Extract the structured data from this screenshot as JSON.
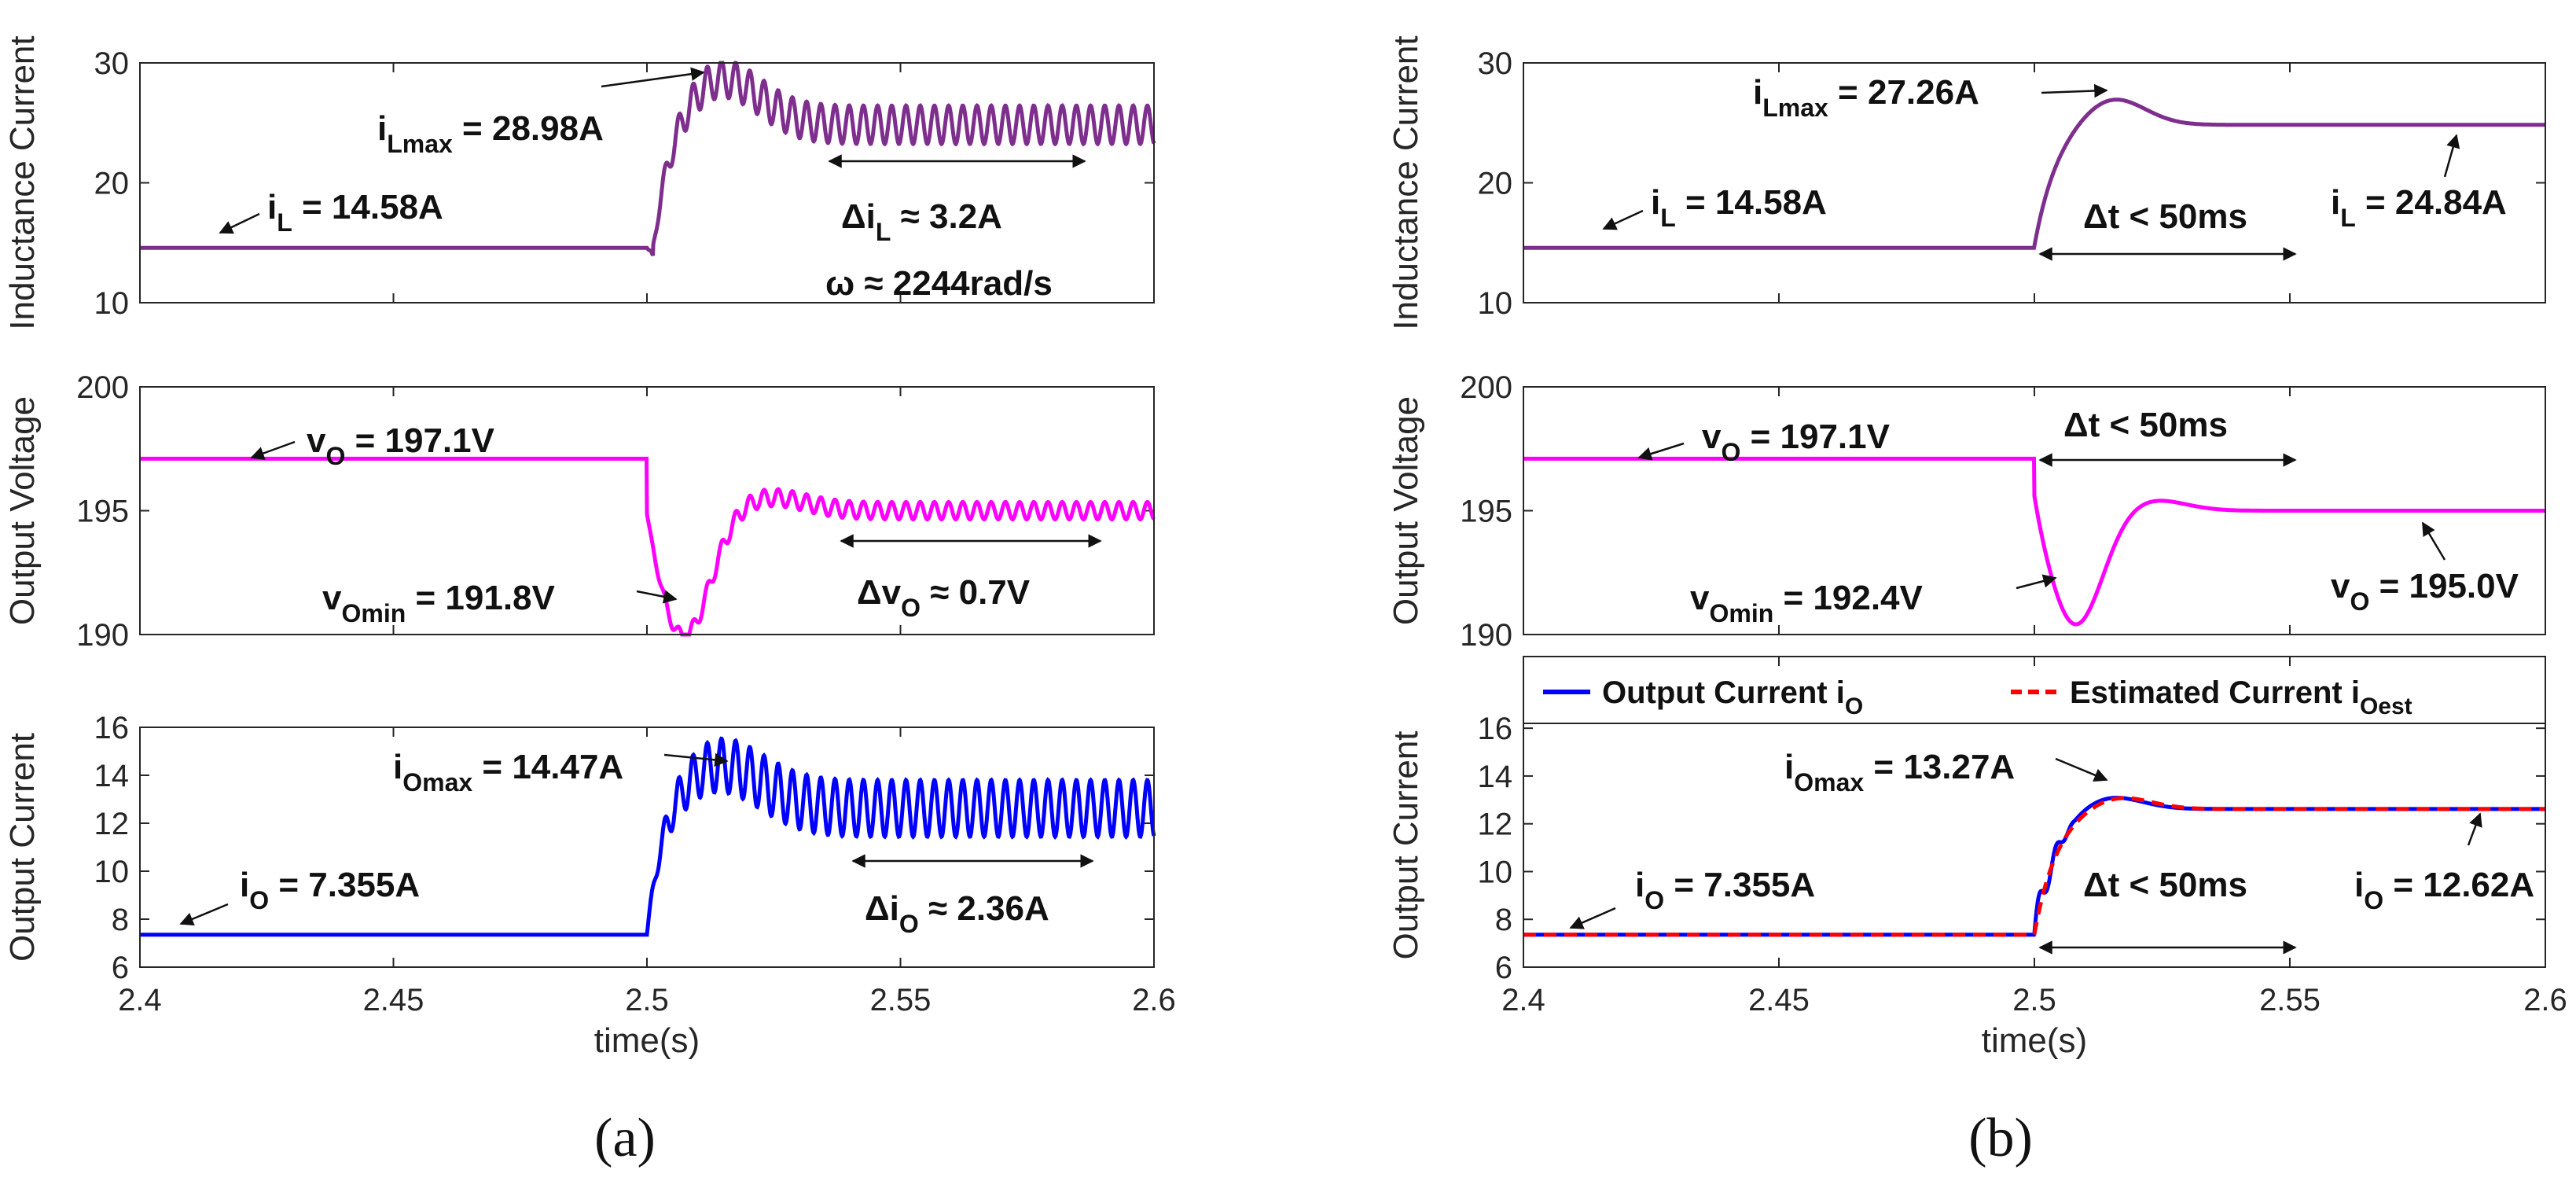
{
  "figure": {
    "panel_labels": [
      "(a)",
      "(b)"
    ]
  },
  "chart_data": [
    {
      "id": "a1",
      "type": "line",
      "panel": "a",
      "ylabel": "Inductance Current",
      "xlabel": "",
      "xlim": [
        2.4,
        2.6
      ],
      "ylim": [
        10,
        30
      ],
      "xticks": [
        2.4,
        2.45,
        2.5,
        2.55,
        2.6
      ],
      "yticks": [
        10,
        20,
        30
      ],
      "x_tick_labels": [],
      "y_tick_labels": [
        "10",
        "20",
        "30"
      ],
      "series": [
        {
          "name": "iL",
          "color": "#7e2f8e",
          "pre": 14.58,
          "step_at": 2.5,
          "dip": 13.7,
          "peak": 28.98,
          "peak_t": 2.514,
          "settle": 24.84,
          "osc_amp": 1.6,
          "osc_rad_s": 2244,
          "final": 24.84
        }
      ],
      "annotations": [
        {
          "main": "i",
          "sub": "Lmax",
          "rest": " = 28.98A"
        },
        {
          "main": "i",
          "sub": "L",
          "rest": " = 14.58A"
        },
        {
          "main": "Δi",
          "sub": "L",
          "rest": " ≈ 3.2A"
        },
        {
          "main": "ω ≈ 2244rad/s",
          "sub": "",
          "rest": ""
        }
      ]
    },
    {
      "id": "a2",
      "type": "line",
      "panel": "a",
      "ylabel": "Output Voltage",
      "xlabel": "",
      "xlim": [
        2.4,
        2.6
      ],
      "ylim": [
        190,
        200
      ],
      "xticks": [
        2.4,
        2.45,
        2.5,
        2.55,
        2.6
      ],
      "yticks": [
        190,
        195,
        200
      ],
      "x_tick_labels": [],
      "y_tick_labels": [
        "190",
        "195",
        "200"
      ],
      "series": [
        {
          "name": "vO",
          "color": "#ff00ff",
          "pre": 197.1,
          "step_at": 2.5,
          "min": 191.8,
          "min_t": 2.507,
          "settle": 195.0,
          "osc_amp": 0.35,
          "osc_rad_s": 2244
        }
      ],
      "annotations": [
        {
          "main": "v",
          "sub": "O",
          "rest": " = 197.1V"
        },
        {
          "main": "v",
          "sub": "Omin",
          "rest": " = 191.8V"
        },
        {
          "main": "Δv",
          "sub": "O",
          "rest": " ≈ 0.7V"
        }
      ]
    },
    {
      "id": "a3",
      "type": "line",
      "panel": "a",
      "ylabel": "Output Current",
      "xlabel": "time(s)",
      "xlim": [
        2.4,
        2.6
      ],
      "ylim": [
        6,
        16
      ],
      "xticks": [
        2.4,
        2.45,
        2.5,
        2.55,
        2.6
      ],
      "yticks": [
        6,
        8,
        10,
        12,
        14,
        16
      ],
      "x_tick_labels": [
        "2.4",
        "2.45",
        "2.5",
        "2.55",
        "2.6"
      ],
      "y_tick_labels": [
        "6",
        "8",
        "10",
        "12",
        "14",
        "16"
      ],
      "series": [
        {
          "name": "iO",
          "color": "#0000ff",
          "pre": 7.355,
          "step_at": 2.5,
          "peak": 14.47,
          "peak_t": 2.514,
          "settle": 12.62,
          "osc_amp": 1.18,
          "osc_rad_s": 2244
        }
      ],
      "annotations": [
        {
          "main": "i",
          "sub": "Omax",
          "rest": " = 14.47A"
        },
        {
          "main": "i",
          "sub": "O",
          "rest": " = 7.355A"
        },
        {
          "main": "Δi",
          "sub": "O",
          "rest": " ≈ 2.36A"
        }
      ]
    },
    {
      "id": "b1",
      "type": "line",
      "panel": "b",
      "ylabel": "Inductance Current",
      "xlabel": "",
      "xlim": [
        2.4,
        2.6
      ],
      "ylim": [
        10,
        30
      ],
      "xticks": [
        2.4,
        2.45,
        2.5,
        2.55,
        2.6
      ],
      "yticks": [
        10,
        20,
        30
      ],
      "x_tick_labels": [],
      "y_tick_labels": [
        "10",
        "20",
        "30"
      ],
      "series": [
        {
          "name": "iL",
          "color": "#7e2f8e",
          "pre": 14.58,
          "step_at": 2.5,
          "peak": 27.26,
          "peak_t": 2.515,
          "settle": 24.84
        }
      ],
      "annotations": [
        {
          "main": "i",
          "sub": "Lmax",
          "rest": " = 27.26A"
        },
        {
          "main": "i",
          "sub": "L",
          "rest": " = 14.58A"
        },
        {
          "main": "Δt < 50ms",
          "sub": "",
          "rest": ""
        },
        {
          "main": "i",
          "sub": "L",
          "rest": " = 24.84A"
        }
      ]
    },
    {
      "id": "b2",
      "type": "line",
      "panel": "b",
      "ylabel": "Output Voltage",
      "xlabel": "",
      "xlim": [
        2.4,
        2.6
      ],
      "ylim": [
        190,
        200
      ],
      "xticks": [
        2.4,
        2.45,
        2.5,
        2.55,
        2.6
      ],
      "yticks": [
        190,
        195,
        200
      ],
      "x_tick_labels": [],
      "y_tick_labels": [
        "190",
        "195",
        "200"
      ],
      "series": [
        {
          "name": "vO",
          "color": "#ff00ff",
          "pre": 197.1,
          "step_at": 2.5,
          "min": 192.4,
          "min_t": 2.508,
          "settle": 195.0
        }
      ],
      "annotations": [
        {
          "main": "v",
          "sub": "O",
          "rest": " = 197.1V"
        },
        {
          "main": "Δt < 50ms",
          "sub": "",
          "rest": ""
        },
        {
          "main": "v",
          "sub": "Omin",
          "rest": " = 192.4V"
        },
        {
          "main": "v",
          "sub": "O",
          "rest": " = 195.0V"
        }
      ]
    },
    {
      "id": "b3",
      "type": "line",
      "panel": "b",
      "ylabel": "Output Current",
      "xlabel": "time(s)",
      "xlim": [
        2.4,
        2.6
      ],
      "ylim": [
        6,
        19
      ],
      "xticks": [
        2.4,
        2.45,
        2.5,
        2.55,
        2.6
      ],
      "yticks": [
        6,
        8,
        10,
        12,
        14,
        16
      ],
      "x_tick_labels": [
        "2.4",
        "2.45",
        "2.5",
        "2.55",
        "2.6"
      ],
      "y_tick_labels": [
        "6",
        "8",
        "10",
        "12",
        "14",
        "16"
      ],
      "legend": {
        "placement": "top",
        "entries": [
          {
            "main": "Output Current i",
            "sub": "O",
            "color": "#0000ff",
            "dash": false
          },
          {
            "main": "Estimated Current i",
            "sub": "Oest",
            "color": "#ff0000",
            "dash": true
          }
        ]
      },
      "series": [
        {
          "name": "Output Current iO",
          "color": "#0000ff",
          "pre": 7.355,
          "step_at": 2.5,
          "peak": 13.27,
          "peak_t": 2.514,
          "settle": 12.62
        },
        {
          "name": "Estimated Current iOest",
          "color": "#ff0000",
          "pre": 7.355,
          "step_at": 2.5,
          "peak": 13.2,
          "peak_t": 2.516,
          "settle": 12.62
        }
      ],
      "annotations": [
        {
          "main": "i",
          "sub": "Omax",
          "rest": " = 13.27A"
        },
        {
          "main": "i",
          "sub": "O",
          "rest": " = 7.355A"
        },
        {
          "main": "Δt < 50ms",
          "sub": "",
          "rest": ""
        },
        {
          "main": "i",
          "sub": "O",
          "rest": " = 12.62A"
        }
      ]
    }
  ]
}
